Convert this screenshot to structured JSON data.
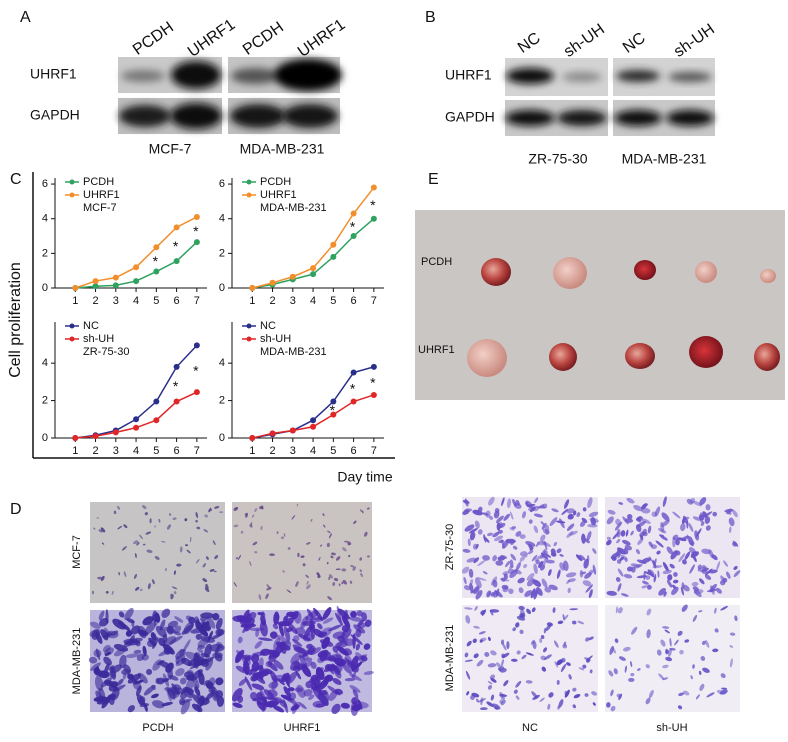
{
  "panel_a": {
    "letter": "A",
    "lanes": [
      "PCDH",
      "UHRF1",
      "PCDH",
      "UHRF1"
    ],
    "rows": [
      "UHRF1",
      "GAPDH"
    ],
    "cell_lines": [
      "MCF-7",
      "MDA-MB-231"
    ]
  },
  "panel_b": {
    "letter": "B",
    "lanes": [
      "NC",
      "sh-UH",
      "NC",
      "sh-UH"
    ],
    "rows": [
      "UHRF1",
      "GAPDH"
    ],
    "cell_lines": [
      "ZR-75-30",
      "MDA-MB-231"
    ]
  },
  "panel_c": {
    "letter": "C",
    "y_label": "Cell proliferation",
    "x_label": "Day time"
  },
  "chart_data": [
    {
      "type": "line",
      "subtitle": "MCF-7",
      "x": [
        1,
        2,
        3,
        4,
        5,
        6,
        7
      ],
      "xlim": [
        0,
        7.5
      ],
      "xticks": [
        1,
        2,
        3,
        4,
        5,
        6,
        7
      ],
      "ylim": [
        0,
        6.35
      ],
      "yticks": [
        0,
        2,
        4,
        6
      ],
      "series": [
        {
          "name": "PCDH",
          "color": "#2ea25e",
          "values": [
            0,
            0.1,
            0.15,
            0.4,
            0.95,
            1.55,
            2.65
          ]
        },
        {
          "name": "UHRF1",
          "color": "#f28e2b",
          "values": [
            0,
            0.4,
            0.6,
            1.2,
            2.35,
            3.5,
            4.1
          ]
        }
      ],
      "annotations": [
        {
          "x": 5,
          "text": "*"
        },
        {
          "x": 6,
          "text": "*"
        },
        {
          "x": 7,
          "text": "*"
        }
      ]
    },
    {
      "type": "line",
      "subtitle": "MDA-MB-231",
      "x": [
        1,
        2,
        3,
        4,
        5,
        6,
        7
      ],
      "xlim": [
        0,
        7.5
      ],
      "xticks": [
        1,
        2,
        3,
        4,
        5,
        6,
        7
      ],
      "ylim": [
        0,
        6.35
      ],
      "yticks": [
        0,
        2,
        4,
        6
      ],
      "series": [
        {
          "name": "PCDH",
          "color": "#2ea25e",
          "values": [
            0,
            0.2,
            0.5,
            0.8,
            1.8,
            3.0,
            4.0
          ]
        },
        {
          "name": "UHRF1",
          "color": "#f28e2b",
          "values": [
            0,
            0.3,
            0.65,
            1.15,
            2.5,
            4.3,
            5.8
          ]
        }
      ],
      "annotations": [
        {
          "x": 6,
          "text": "*"
        },
        {
          "x": 7,
          "text": "*"
        }
      ]
    },
    {
      "type": "line",
      "subtitle": "ZR-75-30",
      "x": [
        1,
        2,
        3,
        4,
        5,
        6,
        7
      ],
      "xlim": [
        0,
        7.5
      ],
      "xticks": [
        1,
        2,
        3,
        4,
        5,
        6,
        7
      ],
      "ylim": [
        0,
        6.2
      ],
      "yticks": [
        0,
        2,
        4
      ],
      "series": [
        {
          "name": "NC",
          "color": "#2b2f8c",
          "values": [
            0,
            0.15,
            0.4,
            1.0,
            1.95,
            3.8,
            4.95
          ]
        },
        {
          "name": "sh-UH",
          "color": "#e02626",
          "values": [
            0,
            0.1,
            0.3,
            0.55,
            0.95,
            1.95,
            2.45
          ]
        }
      ],
      "annotations": [
        {
          "x": 6,
          "text": "*"
        },
        {
          "x": 7,
          "text": "*"
        }
      ]
    },
    {
      "type": "line",
      "subtitle": "MDA-MB-231",
      "x": [
        1,
        2,
        3,
        4,
        5,
        6,
        7
      ],
      "xlim": [
        0,
        7.5
      ],
      "xticks": [
        1,
        2,
        3,
        4,
        5,
        6,
        7
      ],
      "ylim": [
        0,
        6.2
      ],
      "yticks": [
        0,
        2,
        4
      ],
      "series": [
        {
          "name": "NC",
          "color": "#2b2f8c",
          "values": [
            0,
            0.2,
            0.4,
            0.95,
            1.95,
            3.5,
            3.8
          ]
        },
        {
          "name": "sh-UH",
          "color": "#e02626",
          "values": [
            0,
            0.25,
            0.4,
            0.6,
            1.25,
            1.95,
            2.3
          ]
        }
      ],
      "annotations": [
        {
          "x": 5,
          "text": "*"
        },
        {
          "x": 6,
          "text": "*"
        },
        {
          "x": 7,
          "text": "*"
        }
      ]
    }
  ],
  "panel_d": {
    "letter": "D",
    "left": {
      "rows": [
        "MCF-7",
        "MDA-MB-231"
      ],
      "columns": [
        "PCDH",
        "UHRF1"
      ]
    },
    "right": {
      "rows": [
        "ZR-75-30",
        "MDA-MB-231"
      ],
      "columns": [
        "NC",
        "sh-UH"
      ]
    }
  },
  "panel_e": {
    "letter": "E",
    "rows": [
      "PCDH",
      "UHRF1"
    ]
  }
}
